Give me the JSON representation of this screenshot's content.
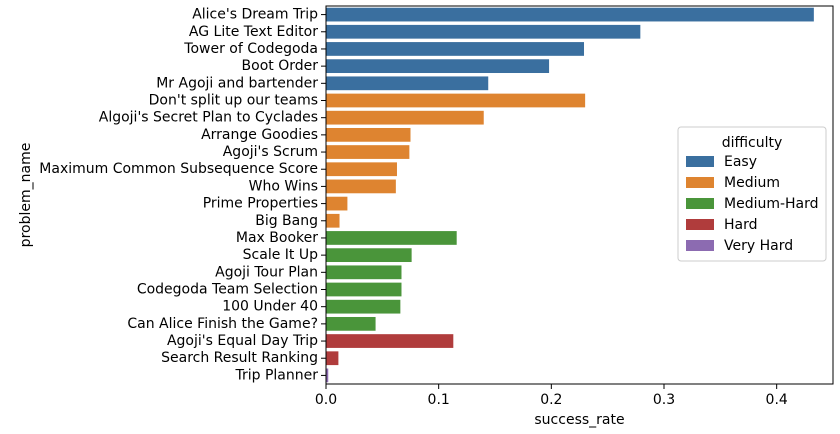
{
  "chart_data": {
    "type": "bar",
    "orientation": "horizontal",
    "xlabel": "success_rate",
    "ylabel": "problem_name",
    "xlim": [
      0,
      0.45
    ],
    "xticks": [
      0.0,
      0.1,
      0.2,
      0.3,
      0.4
    ],
    "xtick_labels": [
      "0.0",
      "0.1",
      "0.2",
      "0.3",
      "0.4"
    ],
    "legend": {
      "title": "difficulty",
      "placement": "center-right",
      "entries": [
        {
          "label": "Easy",
          "color": "#3a6f9f"
        },
        {
          "label": "Medium",
          "color": "#de8430"
        },
        {
          "label": "Medium-Hard",
          "color": "#4a953a"
        },
        {
          "label": "Hard",
          "color": "#b03c3c"
        },
        {
          "label": "Very Hard",
          "color": "#8c6bb1"
        }
      ]
    },
    "bars": [
      {
        "name": "Alice's Dream Trip",
        "value": 0.433,
        "difficulty": "Easy"
      },
      {
        "name": "AG Lite Text Editor",
        "value": 0.279,
        "difficulty": "Easy"
      },
      {
        "name": "Tower of Codegoda",
        "value": 0.229,
        "difficulty": "Easy"
      },
      {
        "name": "Boot Order",
        "value": 0.198,
        "difficulty": "Easy"
      },
      {
        "name": "Mr Agoji and bartender",
        "value": 0.144,
        "difficulty": "Easy"
      },
      {
        "name": "Don't split up our teams",
        "value": 0.23,
        "difficulty": "Medium"
      },
      {
        "name": "Algoji's Secret Plan to Cyclades",
        "value": 0.14,
        "difficulty": "Medium"
      },
      {
        "name": "Arrange Goodies",
        "value": 0.075,
        "difficulty": "Medium"
      },
      {
        "name": "Agoji's Scrum",
        "value": 0.074,
        "difficulty": "Medium"
      },
      {
        "name": "Maximum Common Subsequence Score",
        "value": 0.063,
        "difficulty": "Medium"
      },
      {
        "name": "Who Wins",
        "value": 0.062,
        "difficulty": "Medium"
      },
      {
        "name": "Prime Properties",
        "value": 0.019,
        "difficulty": "Medium"
      },
      {
        "name": "Big Bang",
        "value": 0.012,
        "difficulty": "Medium"
      },
      {
        "name": "Max Booker",
        "value": 0.116,
        "difficulty": "Medium-Hard"
      },
      {
        "name": "Scale It Up",
        "value": 0.076,
        "difficulty": "Medium-Hard"
      },
      {
        "name": "Agoji Tour Plan",
        "value": 0.067,
        "difficulty": "Medium-Hard"
      },
      {
        "name": "Codegoda Team Selection",
        "value": 0.067,
        "difficulty": "Medium-Hard"
      },
      {
        "name": "100 Under 40",
        "value": 0.066,
        "difficulty": "Medium-Hard"
      },
      {
        "name": "Can Alice Finish the Game?",
        "value": 0.044,
        "difficulty": "Medium-Hard"
      },
      {
        "name": "Agoji's Equal Day Trip",
        "value": 0.113,
        "difficulty": "Hard"
      },
      {
        "name": "Search Result Ranking",
        "value": 0.011,
        "difficulty": "Hard"
      },
      {
        "name": "Trip Planner",
        "value": 0.002,
        "difficulty": "Very Hard"
      }
    ]
  }
}
